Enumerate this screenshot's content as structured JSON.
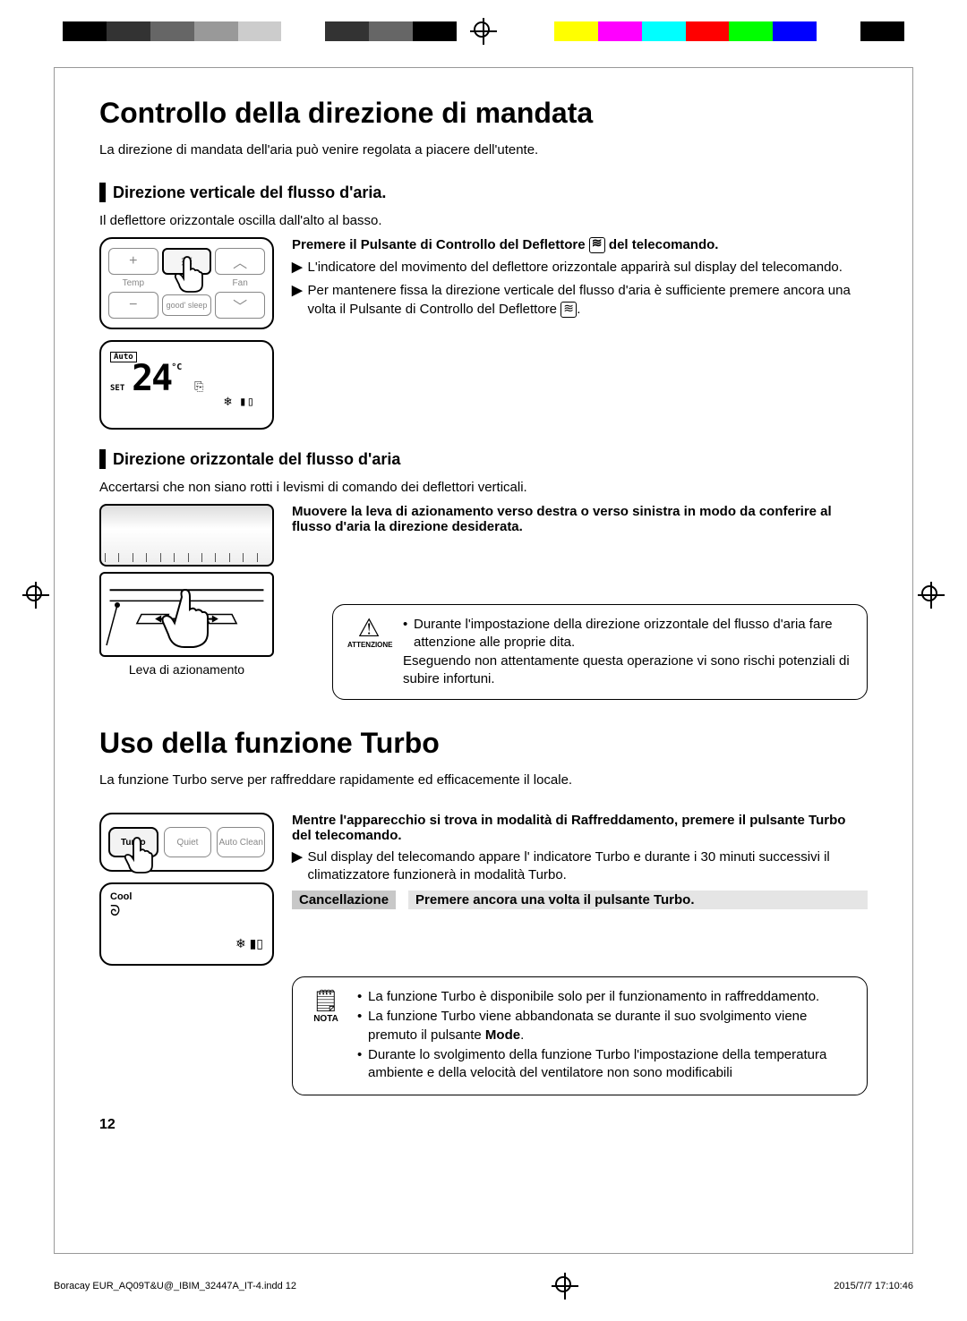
{
  "print": {
    "colorbar_left": [
      "#000000",
      "#333333",
      "#666666",
      "#999999",
      "#cccccc",
      "#ffffff",
      "#333333",
      "#666666",
      "#000000"
    ],
    "colorbar_right": [
      "#ffffff",
      "#ffff00",
      "#ff00ff",
      "#00ffff",
      "#ff0000",
      "#00ff00",
      "#0000ff",
      "#ffffff",
      "#000000"
    ]
  },
  "h1_a": "Controllo della direzione di mandata",
  "intro_a": "La direzione di mandata dell'aria può venire regolata a piacere dell'utente.",
  "sub1": "Direzione verticale del flusso d'aria.",
  "sub1_intro": "Il deflettore orizzontale oscilla dall'alto al basso.",
  "remote1": {
    "temp": "Temp",
    "fan": "Fan",
    "goodsleep": "good' sleep",
    "plus": "+",
    "minus": "−",
    "up": "︿",
    "down": "﹀"
  },
  "display1": {
    "auto": "Auto",
    "set": "SET",
    "temp": "24",
    "c": "°C",
    "fan_icon": "❄ ▮▯",
    "mode_icon": "⎘"
  },
  "instr1_head_a": "Premere il Pulsante di Controllo del Deflettore ",
  "instr1_head_b": " del telecomando.",
  "instr1_b1": "L'indicatore del movimento del deflettore orizzontale apparirà sul display del telecomando.",
  "instr1_b2_a": "Per mantenere fissa la direzione verticale  del flusso d'aria è sufficiente premere ancora una volta il Pulsante di Controllo del Deflettore ",
  "instr1_b2_b": ".",
  "sub2": "Direzione orizzontale del flusso d'aria",
  "sub2_intro": "Accertarsi che non siano rotti i levismi di comando dei deflettori verticali.",
  "instr2_head": "Muovere la leva di azionamento  verso destra o verso sinistra in modo da conferire al flusso d'aria la direzione desiderata.",
  "lever_label": "Leva di azionamento",
  "caution": {
    "label": "ATTENZIONE",
    "l1": "Durante l'impostazione della direzione orizzontale del flusso d'aria fare attenzione alle proprie  dita.",
    "l2": "Eseguendo non attentamente questa operazione vi sono rischi potenziali di subire infortuni."
  },
  "h1_b": "Uso  della funzione Turbo",
  "intro_b": "La funzione Turbo serve per raffreddare rapidamente ed efficacemente  il locale.",
  "remote2": {
    "turbo": "Turbo",
    "quiet": "Quiet",
    "autoclean": "Auto Clean"
  },
  "display2": {
    "cool": "Cool",
    "turbo_icon": "ᘐ",
    "fan_icon": "❄ ▮▯"
  },
  "instr3_head": "Mentre l'apparecchio  si trova in modalità di Raffreddamento, premere il pulsante Turbo del telecomando.",
  "instr3_b1": "Sul display del telecomando appare l' indicatore Turbo e durante i 30 minuti successivi  il climatizzatore funzionerà in modalità Turbo.",
  "cancel_lbl": "Cancellazione",
  "cancel_txt": "Premere ancora una volta il pulsante Turbo.",
  "nota": {
    "label": "NOTA",
    "l1": "La funzione Turbo è disponibile solo per il funzionamento in raffreddamento.",
    "l2_a": "La funzione Turbo viene abbandonata se durante il suo svolgimento viene premuto il pulsante ",
    "l2_b": "Mode",
    "l2_c": ".",
    "l3": "Durante lo svolgimento della funzione Turbo l'impostazione della temperatura ambiente e della velocità del ventilatore non sono modificabili"
  },
  "page_num": "12",
  "footer": {
    "file": "Boracay EUR_AQ09T&U@_IBIM_32447A_IT-4.indd   12",
    "date": "2015/7/7   17:10:46"
  }
}
